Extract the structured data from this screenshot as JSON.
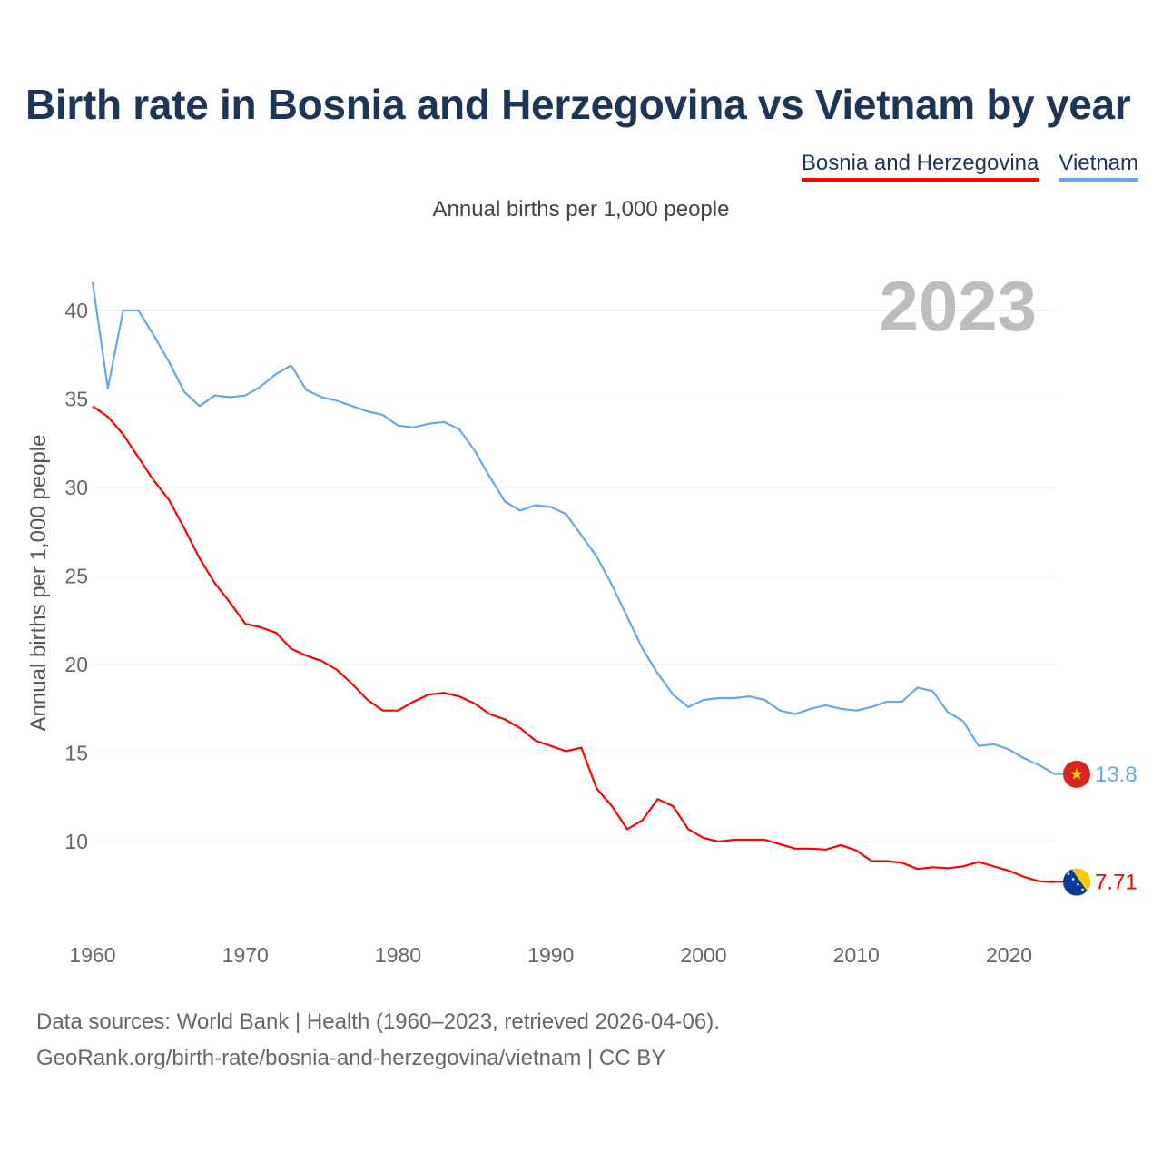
{
  "title": "Birth rate in Bosnia and Herzegovina vs Vietnam by year",
  "subtitle": "Annual births per 1,000 people",
  "year_label": "2023",
  "legend": [
    {
      "name": "Bosnia and Herzegovina",
      "color": "#ff0000"
    },
    {
      "name": "Vietnam",
      "color": "#64a8e8"
    }
  ],
  "source_line1": "Data sources: World Bank | Health (1960–2023, retrieved 2026-04-06).",
  "source_line2": "GeoRank.org/birth-rate/bosnia-and-herzegovina/vietnam | CC BY",
  "chart_data": {
    "type": "line",
    "title": "Birth rate in Bosnia and Herzegovina vs Vietnam by year",
    "ylabel": "Annual births per 1,000 people",
    "xlabel": "",
    "xlim": [
      1960,
      2023
    ],
    "ylim": [
      6.5,
      42
    ],
    "xticks": [
      1960,
      1970,
      1980,
      1990,
      2000,
      2010,
      2020
    ],
    "yticks": [
      10,
      15,
      20,
      25,
      30,
      35,
      40
    ],
    "grid": true,
    "x": [
      1960,
      1961,
      1962,
      1963,
      1964,
      1965,
      1966,
      1967,
      1968,
      1969,
      1970,
      1971,
      1972,
      1973,
      1974,
      1975,
      1976,
      1977,
      1978,
      1979,
      1980,
      1981,
      1982,
      1983,
      1984,
      1985,
      1986,
      1987,
      1988,
      1989,
      1990,
      1991,
      1992,
      1993,
      1994,
      1995,
      1996,
      1997,
      1998,
      1999,
      2000,
      2001,
      2002,
      2003,
      2004,
      2005,
      2006,
      2007,
      2008,
      2009,
      2010,
      2011,
      2012,
      2013,
      2014,
      2015,
      2016,
      2017,
      2018,
      2019,
      2020,
      2021,
      2022,
      2023
    ],
    "series": [
      {
        "name": "Bosnia and Herzegovina",
        "color": "#ff0000",
        "end_label": "7.71",
        "flag": "bosnia-flag-icon",
        "values": [
          34.6,
          34.0,
          33.0,
          31.7,
          30.4,
          29.3,
          27.7,
          26.0,
          24.6,
          23.5,
          22.3,
          22.1,
          21.8,
          20.9,
          20.5,
          20.2,
          19.7,
          18.9,
          18.0,
          17.4,
          17.4,
          17.9,
          18.3,
          18.4,
          18.2,
          17.8,
          17.2,
          16.9,
          16.4,
          15.7,
          15.4,
          15.1,
          15.3,
          13.0,
          12.0,
          10.7,
          11.2,
          12.4,
          12.0,
          10.7,
          10.2,
          10.0,
          10.1,
          10.1,
          10.1,
          9.85,
          9.6,
          9.6,
          9.55,
          9.8,
          9.5,
          8.9,
          8.9,
          8.8,
          8.45,
          8.55,
          8.5,
          8.6,
          8.85,
          8.6,
          8.35,
          8.0,
          7.75,
          7.71
        ]
      },
      {
        "name": "Vietnam",
        "color": "#64a8e8",
        "end_label": "13.8",
        "flag": "vietnam-flag-icon",
        "values": [
          41.6,
          35.6,
          40.0,
          40.0,
          38.6,
          37.1,
          35.4,
          34.6,
          35.2,
          35.1,
          35.2,
          35.7,
          36.4,
          36.9,
          35.5,
          35.1,
          34.9,
          34.6,
          34.3,
          34.1,
          33.5,
          33.4,
          33.6,
          33.7,
          33.3,
          32.1,
          30.6,
          29.2,
          28.7,
          29.0,
          28.9,
          28.5,
          27.3,
          26.1,
          24.5,
          22.7,
          20.9,
          19.5,
          18.3,
          17.6,
          18.0,
          18.1,
          18.1,
          18.2,
          18.0,
          17.4,
          17.2,
          17.5,
          17.7,
          17.5,
          17.4,
          17.6,
          17.9,
          17.9,
          18.7,
          18.5,
          17.3,
          16.8,
          15.4,
          15.5,
          15.2,
          14.7,
          14.3,
          13.8
        ]
      }
    ]
  }
}
